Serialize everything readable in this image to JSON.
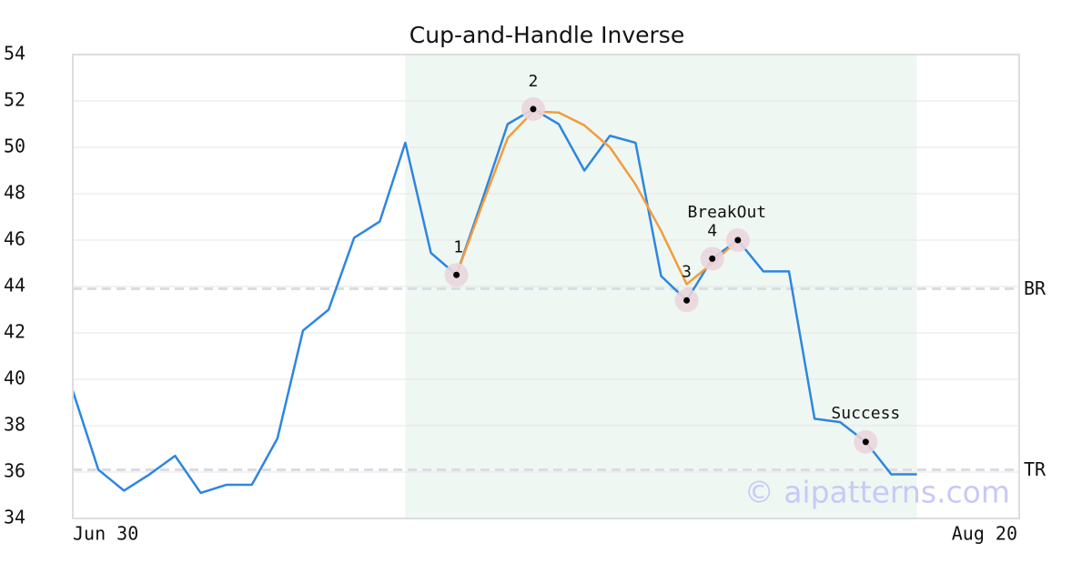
{
  "chart_data": {
    "type": "line",
    "title": "Cup-and-Handle Inverse",
    "x": [
      0,
      1,
      2,
      3,
      4,
      5,
      6,
      7,
      8,
      9,
      10,
      11,
      12,
      13,
      14,
      15,
      16,
      17,
      18,
      19,
      20,
      21,
      22,
      23,
      24,
      25,
      26,
      27,
      28,
      29,
      30,
      31,
      32,
      33
    ],
    "xlim": [
      0,
      37
    ],
    "xticks": [
      {
        "value": 0,
        "label": "Jun 30"
      },
      {
        "value": 37,
        "label": "Aug 20"
      }
    ],
    "ylim": [
      34,
      54
    ],
    "yticks": [
      34,
      36,
      38,
      40,
      42,
      44,
      46,
      48,
      50,
      52,
      54
    ],
    "grid": true,
    "series": [
      {
        "color": "#2e86de",
        "values": [
          39.5,
          36.1,
          35.2,
          35.9,
          36.7,
          35.1,
          35.45,
          35.45,
          37.45,
          42.1,
          43.0,
          46.1,
          46.8,
          50.2,
          45.45,
          44.5,
          47.7,
          51.0,
          51.65,
          51.0,
          49.0,
          50.5,
          50.2,
          44.45,
          43.4,
          45.2,
          46.0,
          44.65,
          44.65,
          38.3,
          38.15,
          37.3,
          35.9,
          35.9
        ]
      },
      {
        "color": "#f39c3c",
        "values": [
          null,
          null,
          null,
          null,
          null,
          null,
          null,
          null,
          null,
          null,
          null,
          null,
          null,
          null,
          null,
          44.5,
          47.5,
          50.4,
          51.55,
          51.5,
          50.95,
          50.0,
          48.4,
          46.4,
          44.1,
          45.0,
          46.0,
          null,
          null,
          null,
          null,
          null,
          null,
          null
        ]
      }
    ],
    "shade_range": [
      13,
      33
    ],
    "levels": [
      {
        "label": "BR",
        "value": 43.9
      },
      {
        "label": "TR",
        "value": 36.1
      }
    ],
    "annotations": [
      {
        "label": "1",
        "x": 15,
        "y": 44.5
      },
      {
        "label": "2",
        "x": 18,
        "y": 51.65
      },
      {
        "label": "3",
        "x": 24,
        "y": 43.4
      },
      {
        "label": "4",
        "x": 25,
        "y": 45.2
      },
      {
        "label": "BreakOut",
        "x": 26,
        "y": 46.0
      },
      {
        "label": "Success",
        "x": 31,
        "y": 37.3
      }
    ],
    "watermark": "© aipatterns.com"
  }
}
